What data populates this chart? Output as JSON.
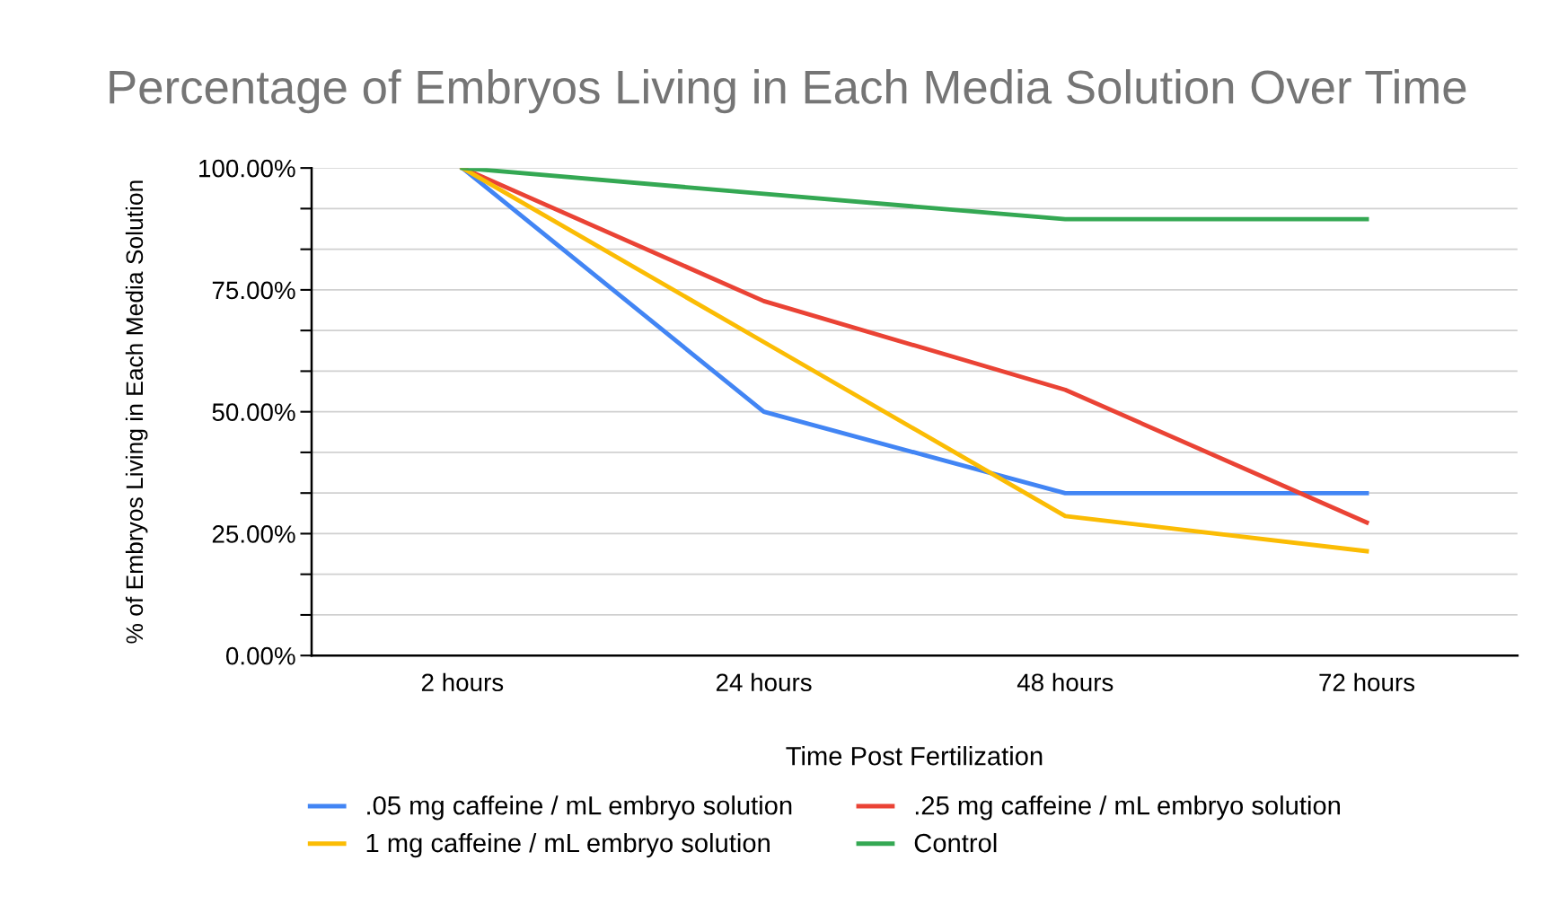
{
  "chart_data": {
    "type": "line",
    "title": "Percentage of Embryos Living in Each Media Solution Over Time",
    "xlabel": "Time Post Fertilization",
    "ylabel": "% of Embryos Living in Each Media Solution",
    "categories": [
      "2 hours",
      "24 hours",
      "48 hours",
      "72 hours"
    ],
    "series": [
      {
        "name": ".05 mg caffeine / mL embryo solution",
        "color": "#4285f4",
        "values": [
          100,
          50,
          33.3,
          33.3
        ]
      },
      {
        "name": ".25 mg caffeine / mL embryo solution",
        "color": "#ea4335",
        "values": [
          100,
          72.7,
          54.5,
          27.3
        ]
      },
      {
        "name": "1 mg caffeine / mL embryo solution",
        "color": "#fbbc04",
        "values": [
          100,
          64.3,
          28.6,
          21.4
        ]
      },
      {
        "name": "Control",
        "color": "#34a853",
        "values": [
          100,
          94.7,
          89.5,
          89.5
        ]
      }
    ],
    "ylim": [
      0,
      100
    ],
    "yticks": [
      {
        "value": 0,
        "label": "0.00%"
      },
      {
        "value": 8.33,
        "label": null
      },
      {
        "value": 16.67,
        "label": null
      },
      {
        "value": 25,
        "label": "25.00%"
      },
      {
        "value": 33.33,
        "label": null
      },
      {
        "value": 41.67,
        "label": null
      },
      {
        "value": 50,
        "label": "50.00%"
      },
      {
        "value": 58.33,
        "label": null
      },
      {
        "value": 66.67,
        "label": null
      },
      {
        "value": 75,
        "label": "75.00%"
      },
      {
        "value": 83.33,
        "label": null
      },
      {
        "value": 91.67,
        "label": null
      },
      {
        "value": 100,
        "label": "100.00%"
      }
    ],
    "grid": "y",
    "legend": "bottom",
    "marker": "none",
    "line_style": "solid"
  }
}
